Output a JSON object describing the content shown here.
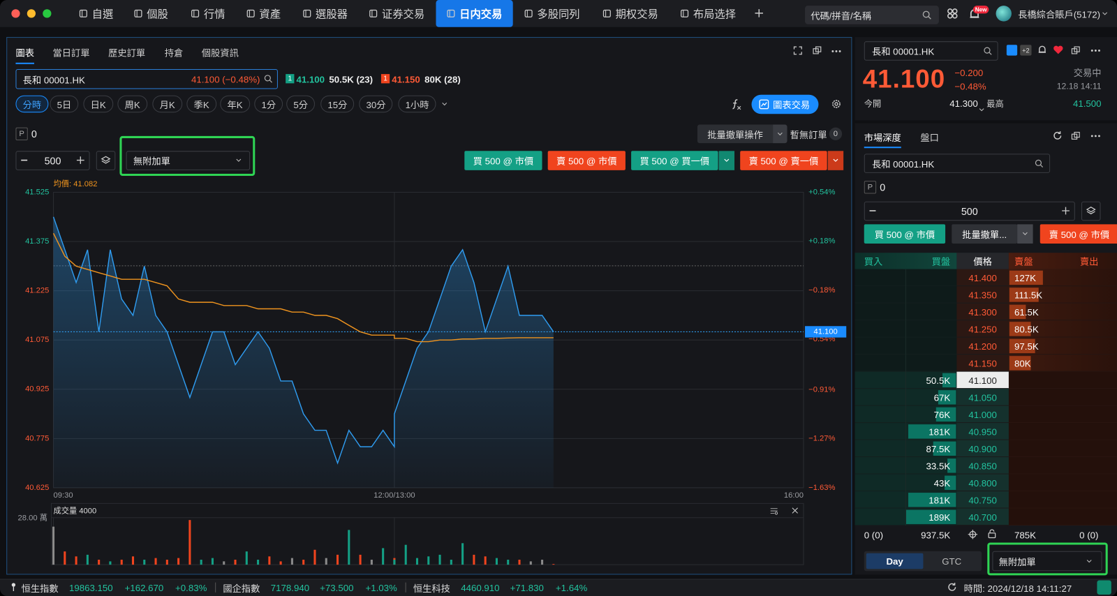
{
  "window": {
    "nav": [
      "自選",
      "個股",
      "行情",
      "資產",
      "選股器",
      "证券交易",
      "日内交易",
      "多股同列",
      "期权交易",
      "布局选择"
    ],
    "search_placeholder": "代碼/拼音/名稱",
    "new_badge": "New",
    "account": "長橋綜合賬戶(5172)"
  },
  "left": {
    "tabs": [
      "圖表",
      "當日訂單",
      "歷史訂單",
      "持倉",
      "個股資訊"
    ],
    "symbol": "長和 00001.HK",
    "symbol_quote": "41.100 (−0.48%)",
    "bid_level": "1",
    "bid_price": "41.100",
    "bid_size": "50.5K (23)",
    "ask_level": "1",
    "ask_price": "41.150",
    "ask_size": "80K (28)",
    "periods": [
      "分時",
      "5日",
      "日K",
      "周K",
      "月K",
      "季K",
      "年K",
      "1分",
      "5分",
      "15分",
      "30分",
      "1小時"
    ],
    "chart_trade": "圖表交易",
    "position_label": "P",
    "position": 0,
    "batch_cancel": "批量撤單操作",
    "no_orders": "暫無訂單",
    "order_count": 0,
    "quantity": 500,
    "attach": "無附加單",
    "orders": [
      "買 500 @ 市價",
      "賣 500 @ 市價",
      "買 500 @ 買一價",
      "賣 500 @ 賣一價"
    ]
  },
  "chart_data": {
    "type": "line",
    "avg_label": "均價: 41.082",
    "x": [
      "09:30",
      "09:35",
      "09:40",
      "09:45",
      "09:50",
      "09:55",
      "10:00",
      "10:05",
      "10:10",
      "10:15",
      "10:20",
      "10:25",
      "10:30",
      "10:35",
      "10:40",
      "10:45",
      "10:50",
      "10:55",
      "11:00",
      "11:05",
      "11:10",
      "11:15",
      "11:20",
      "11:25",
      "11:30",
      "11:35",
      "11:40",
      "11:45",
      "11:50",
      "11:55",
      "12:00",
      "13:00",
      "13:05",
      "13:10",
      "13:15",
      "13:20",
      "13:25",
      "13:30",
      "13:35",
      "13:40",
      "13:45",
      "13:50",
      "13:55",
      "14:00",
      "14:05",
      "14:10"
    ],
    "series": [
      {
        "color": "#2f9cf0",
        "values": [
          41.45,
          41.35,
          41.25,
          41.35,
          41.1,
          41.35,
          41.2,
          41.15,
          41.3,
          41.15,
          41.1,
          41.0,
          40.9,
          41.0,
          41.1,
          41.1,
          41.0,
          41.05,
          41.1,
          41.05,
          40.95,
          40.95,
          40.85,
          40.8,
          40.8,
          40.7,
          40.8,
          40.75,
          40.75,
          40.8,
          40.75,
          40.85,
          40.95,
          41.05,
          41.1,
          41.2,
          41.3,
          41.35,
          41.25,
          41.1,
          41.2,
          41.3,
          41.15,
          41.15,
          41.15,
          41.1
        ]
      },
      {
        "color": "#f0941e",
        "values": [
          41.4,
          41.33,
          41.3,
          41.29,
          41.28,
          41.27,
          41.26,
          41.26,
          41.26,
          41.25,
          41.24,
          41.2,
          41.19,
          41.19,
          41.19,
          41.18,
          41.18,
          41.18,
          41.17,
          41.17,
          41.17,
          41.16,
          41.16,
          41.15,
          41.15,
          41.14,
          41.12,
          41.1,
          41.09,
          41.09,
          41.09,
          41.08,
          41.08,
          41.07,
          41.07,
          41.075,
          41.075,
          41.078,
          41.078,
          41.08,
          41.08,
          41.081,
          41.082,
          41.082,
          41.082,
          41.082
        ]
      }
    ],
    "xlim": [
      "09:30",
      "16:00"
    ],
    "xticks": [
      "09:30",
      "12:00/13:00",
      "16:00"
    ],
    "ylim": [
      40.625,
      41.525
    ],
    "yticks": [
      41.525,
      41.375,
      41.225,
      41.075,
      40.925,
      40.775,
      40.625
    ],
    "y2lim": [
      -1.63,
      0.54
    ],
    "y2ticks": [
      {
        "value": 0.54,
        "label": "+0.54%"
      },
      {
        "value": 0.18,
        "label": "+0.18%"
      },
      {
        "value": -0.18,
        "label": "−0.18%"
      },
      {
        "value": -0.54,
        "label": "−0.54%"
      },
      {
        "value": -0.91,
        "label": "−0.91%"
      },
      {
        "value": -1.27,
        "label": "−1.27%"
      },
      {
        "value": -1.63,
        "label": "−1.63%"
      }
    ],
    "last_price": {
      "value": 41.1,
      "label": "41.100"
    },
    "grid": true,
    "volume": {
      "type": "bar",
      "title": "成交量 4000",
      "up_color": "#14a085",
      "down_color": "#f0441e",
      "flat_color": "#8a8a8a",
      "ylim": [
        0,
        28
      ],
      "yticks": [
        {
          "value": 28,
          "label": "28.00 萬"
        }
      ],
      "values": [
        23,
        8,
        5,
        6,
        3,
        2,
        3,
        5,
        3,
        4,
        3,
        4,
        27,
        3,
        4,
        2,
        3,
        8,
        3,
        5,
        2,
        4,
        3,
        9,
        4,
        6,
        21,
        6,
        3,
        10,
        4,
        3,
        12,
        4,
        5,
        6,
        3,
        13,
        6,
        5,
        4,
        3,
        3,
        2,
        3,
        0.4
      ]
    }
  },
  "quote": {
    "symbol": "長和 00001.HK",
    "extra": "+2",
    "price": "41.100",
    "change": "−0.200",
    "change_pct": "−0.48%",
    "status": "交易中",
    "time": "12.18 14:11",
    "open_label": "今開",
    "open": "41.300",
    "high_label": "最高",
    "high": "41.500"
  },
  "depth": {
    "tabs": [
      "市場深度",
      "盤口"
    ],
    "symbol": "長和 00001.HK",
    "position_label": "P",
    "position": 0,
    "quantity": 500,
    "buttons": [
      "買 500 @ 市價",
      "批量撤單...",
      "賣 500 @ 市價"
    ],
    "headers": [
      "買入",
      "買盤",
      "價格",
      "賣盤",
      "賣出"
    ],
    "asks": [
      {
        "price": "41.400",
        "size": {
          "value": 127000,
          "label": "127K"
        }
      },
      {
        "price": "41.350",
        "size": {
          "value": 111500,
          "label": "111.5K"
        }
      },
      {
        "price": "41.300",
        "size": {
          "value": 61500,
          "label": "61.5K"
        }
      },
      {
        "price": "41.250",
        "size": {
          "value": 80500,
          "label": "80.5K"
        }
      },
      {
        "price": "41.200",
        "size": {
          "value": 97500,
          "label": "97.5K"
        }
      },
      {
        "price": "41.150",
        "size": {
          "value": 80000,
          "label": "80K"
        }
      }
    ],
    "bids": [
      {
        "price": "41.100",
        "size": {
          "value": 50500,
          "label": "50.5K"
        }
      },
      {
        "price": "41.050",
        "size": {
          "value": 67000,
          "label": "67K"
        }
      },
      {
        "price": "41.000",
        "size": {
          "value": 76000,
          "label": "76K"
        }
      },
      {
        "price": "40.950",
        "size": {
          "value": 181000,
          "label": "181K"
        }
      },
      {
        "price": "40.900",
        "size": {
          "value": 87500,
          "label": "87.5K"
        }
      },
      {
        "price": "40.850",
        "size": {
          "value": 33500,
          "label": "33.5K"
        }
      },
      {
        "price": "40.800",
        "size": {
          "value": 43000,
          "label": "43K"
        }
      },
      {
        "price": "40.750",
        "size": {
          "value": 181000,
          "label": "181K"
        }
      },
      {
        "price": "40.700",
        "size": {
          "value": 189000,
          "label": "189K"
        }
      }
    ],
    "footer": [
      "0 (0)",
      "937.5K",
      "785K",
      "0 (0)"
    ],
    "tif": [
      "Day",
      "GTC"
    ],
    "attach": "無附加單"
  },
  "status_bar": {
    "indices": [
      {
        "name": "恒生指數",
        "value": "19863.150",
        "change": "+162.670",
        "pct": "+0.83%"
      },
      {
        "name": "國企指數",
        "value": "7178.940",
        "change": "+73.500",
        "pct": "+1.03%"
      },
      {
        "name": "恒生科技",
        "value": "4460.910",
        "change": "+71.830",
        "pct": "+1.64%"
      }
    ],
    "time": "時間: 2024/12/18 14:11:27"
  }
}
